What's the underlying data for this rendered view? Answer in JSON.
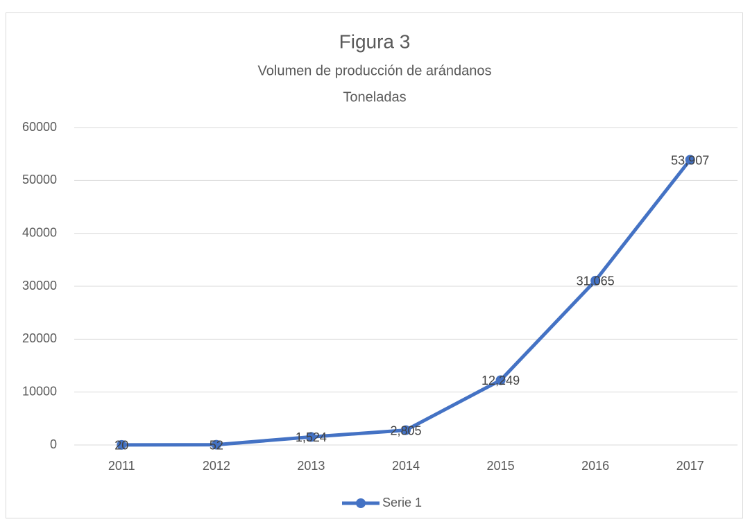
{
  "chart_data": {
    "type": "line",
    "title": "Figura 3",
    "subtitle": [
      "Volumen de producción de arándanos",
      "Toneladas"
    ],
    "categories": [
      "2011",
      "2012",
      "2013",
      "2014",
      "2015",
      "2016",
      "2017"
    ],
    "series": [
      {
        "name": "Serie 1",
        "color": "#4472c4",
        "values": [
          20,
          52,
          1524,
          2805,
          12249,
          31065,
          53907
        ],
        "value_labels": [
          "20",
          "52",
          "1,524",
          "2,805",
          "12,249",
          "31,065",
          "53,907"
        ]
      }
    ],
    "ylim": [
      0,
      60000
    ],
    "yticks": [
      0,
      10000,
      20000,
      30000,
      40000,
      50000,
      60000
    ],
    "grid": true,
    "legend": "bottom"
  }
}
